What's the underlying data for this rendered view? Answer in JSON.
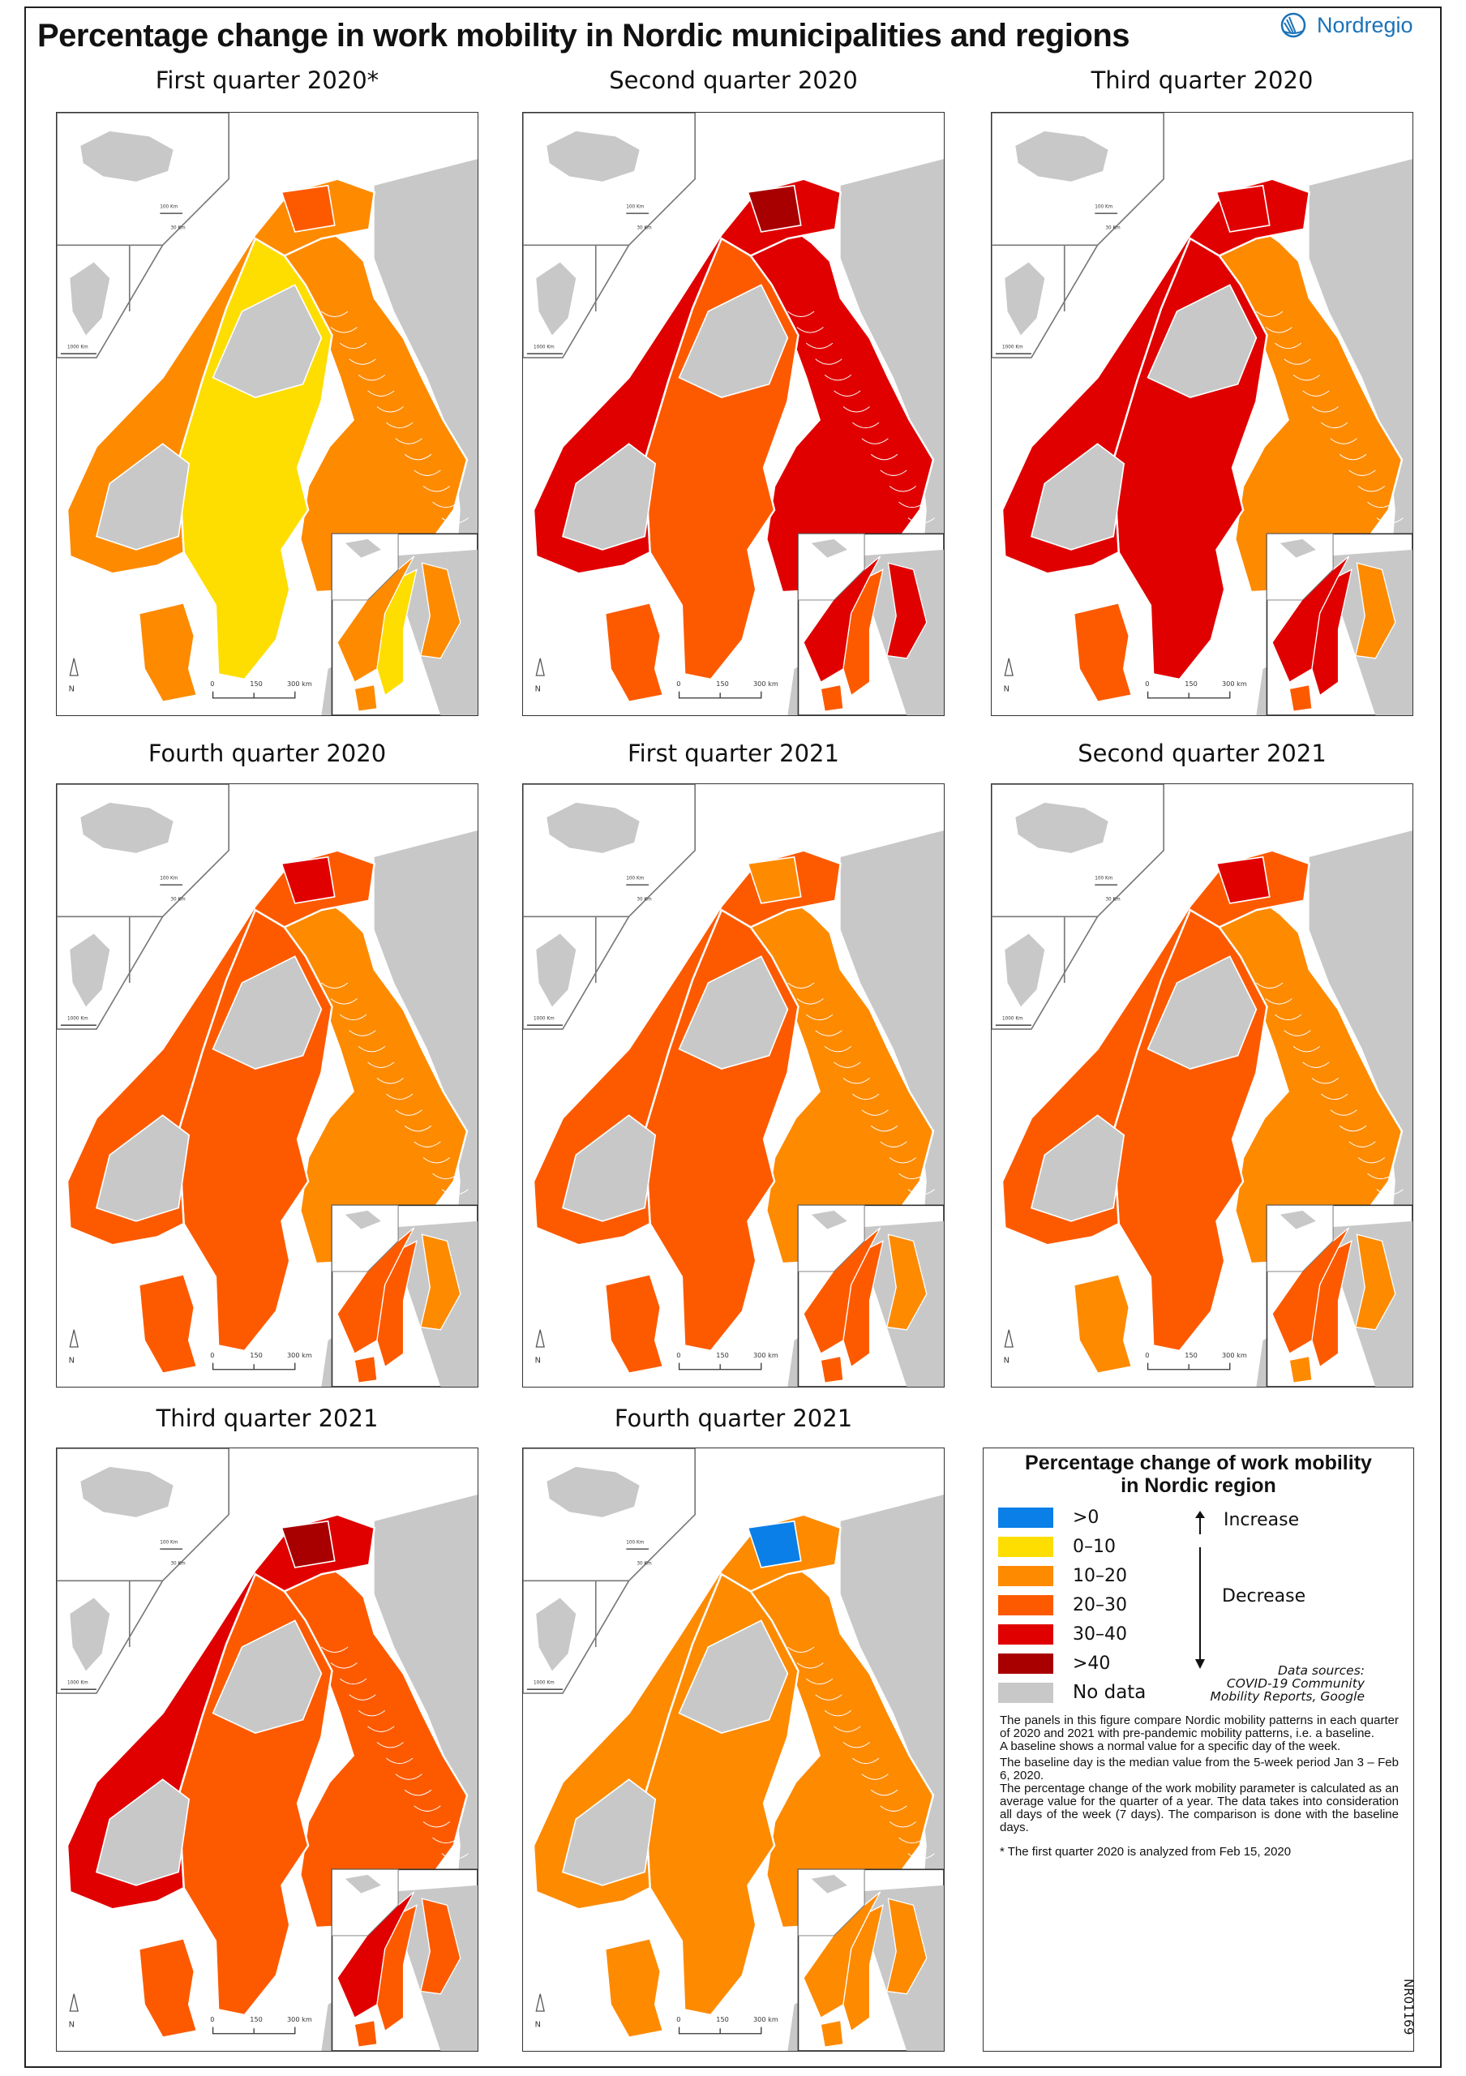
{
  "title": "Percentage change in work mobility in Nordic municipalities and regions",
  "logo": {
    "text": "Nordregio",
    "color": "#1a72b8"
  },
  "figure_code": "NR01169",
  "colors": {
    ">0": "#0a7fe8",
    "0-10": "#fedd00",
    "10-20": "#fe8a00",
    "20-30": "#fd5a00",
    "30-40": "#e00000",
    ">40": "#a80000",
    "no_data": "#c8c8c8"
  },
  "map_labels": {
    "iceland_scale": "100 Km",
    "faroe_scale": "30 Km",
    "greenland_scale": "1000 Km",
    "north": "N",
    "scale_0": "0",
    "scale_150": "150",
    "scale_300": "300 km"
  },
  "chart_data": {
    "type": "choropleth-map-panels",
    "title": "Percentage change in work mobility in Nordic municipalities and regions",
    "legend_position": "bottom-right",
    "panels": [
      {
        "title": "First quarter 2020*",
        "dominant_class": {
          "norway": "10-20",
          "sweden": "0-10",
          "finland": "10-20",
          "denmark": "10-20",
          "north_interior": "no_data",
          "accent": "20-30"
        }
      },
      {
        "title": "Second quarter 2020",
        "dominant_class": {
          "norway": "30-40",
          "sweden": "20-30",
          "finland": "30-40",
          "denmark": "20-30",
          "north_interior": "no_data",
          "accent": ">40"
        }
      },
      {
        "title": "Third quarter 2020",
        "dominant_class": {
          "norway": "30-40",
          "sweden": "30-40",
          "finland": "10-20",
          "denmark": "20-30",
          "north_interior": "no_data",
          "accent": "30-40"
        }
      },
      {
        "title": "Fourth quarter 2020",
        "dominant_class": {
          "norway": "20-30",
          "sweden": "20-30",
          "finland": "10-20",
          "denmark": "20-30",
          "north_interior": "no_data",
          "accent": "30-40"
        }
      },
      {
        "title": "First quarter 2021",
        "dominant_class": {
          "norway": "20-30",
          "sweden": "20-30",
          "finland": "10-20",
          "denmark": "20-30",
          "north_interior": "no_data",
          "accent": "10-20"
        }
      },
      {
        "title": "Second quarter 2021",
        "dominant_class": {
          "norway": "20-30",
          "sweden": "20-30",
          "finland": "10-20",
          "denmark": "10-20",
          "north_interior": "no_data",
          "accent": "30-40"
        }
      },
      {
        "title": "Third quarter 2021",
        "dominant_class": {
          "norway": "30-40",
          "sweden": "20-30",
          "finland": "20-30",
          "denmark": "20-30",
          "north_interior": "no_data",
          "accent": ">40"
        }
      },
      {
        "title": "Fourth quarter 2021",
        "dominant_class": {
          "norway": "10-20",
          "sweden": "10-20",
          "finland": "10-20",
          "denmark": "10-20",
          "north_interior": "no_data",
          "accent": ">0"
        }
      }
    ]
  },
  "legend": {
    "title_line1": "Percentage change of work mobility",
    "title_line2": "in Nordic region",
    "items": [
      {
        "key": ">0",
        "label": ">0"
      },
      {
        "key": "0-10",
        "label": "0–10"
      },
      {
        "key": "10-20",
        "label": "10–20"
      },
      {
        "key": "20-30",
        "label": "20–30"
      },
      {
        "key": "30-40",
        "label": "30–40"
      },
      {
        "key": ">40",
        "label": ">40"
      },
      {
        "key": "no_data",
        "label": "No data"
      }
    ],
    "increase": "Increase",
    "decrease": "Decrease",
    "sources_1": "Data sources:",
    "sources_2": "COVID-19 Community",
    "sources_3": "Mobility Reports, Google",
    "note_1": "The panels in this figure compare Nordic mobility patterns in each quarter of 2020 and 2021 with pre-pandemic mobility patterns, i.e. a baseline.",
    "note_2": "A baseline shows a normal value for a specific day of the week.",
    "note_3": "The baseline day is the median value from the 5-week period Jan 3 – Feb 6, 2020.",
    "note_4": "The percentage change of the work mobility parameter is calculated as an average value for the quarter of a year. The data takes into consideration all days of the week (7 days). The comparison is done with the baseline days.",
    "footnote": "* The first quarter 2020 is analyzed from Feb 15, 2020"
  }
}
